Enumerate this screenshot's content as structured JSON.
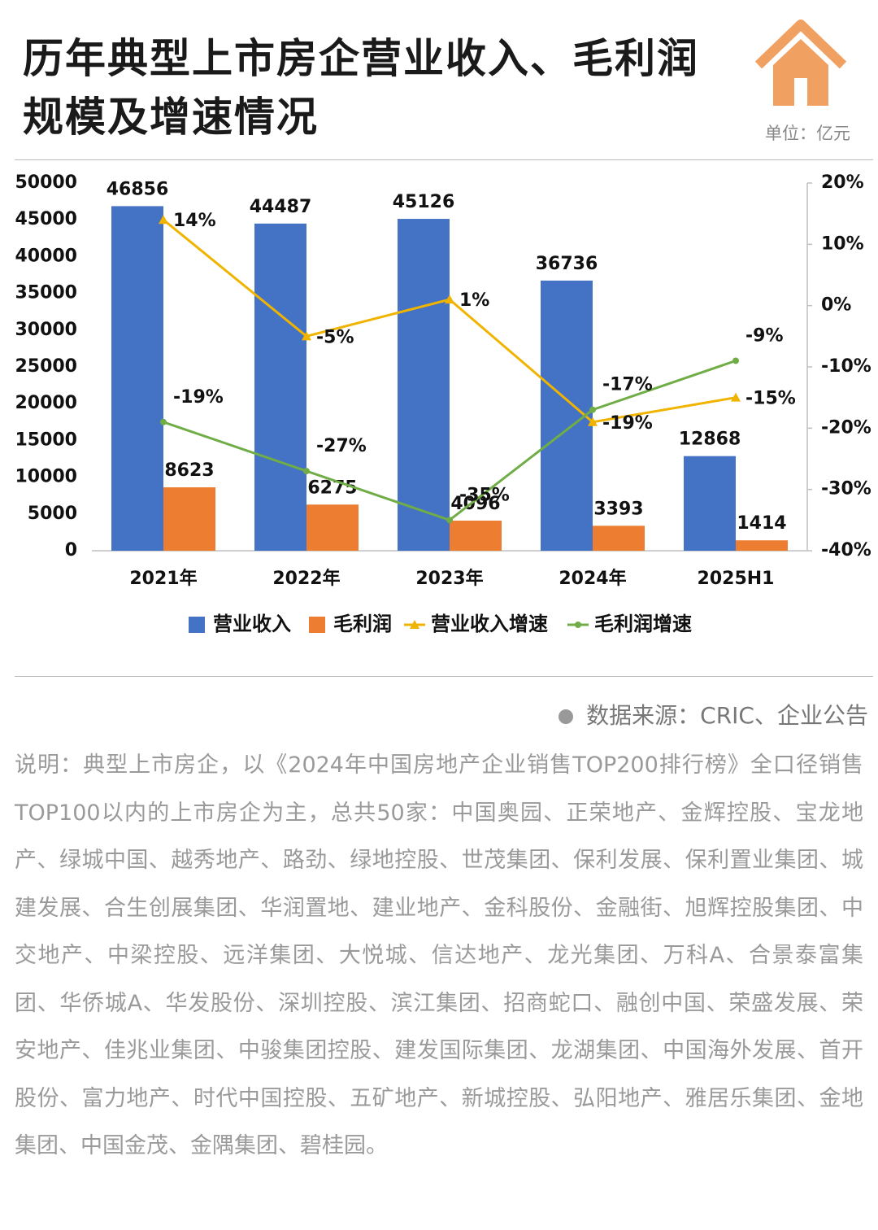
{
  "title": "历年典型上市房企营业收入、毛利润规模及增速情况",
  "unit": "单位：亿元",
  "chart_data": {
    "type": "bar_line",
    "categories": [
      "2021年",
      "2022年",
      "2023年",
      "2024年",
      "2025H1"
    ],
    "series": [
      {
        "name": "营业收入",
        "type": "bar",
        "color": "#4472c4",
        "values": [
          46856,
          44487,
          45126,
          36736,
          12868
        ]
      },
      {
        "name": "毛利润",
        "type": "bar",
        "color": "#ed7d31",
        "values": [
          8623,
          6275,
          4096,
          3393,
          1414
        ]
      },
      {
        "name": "营业收入增速",
        "type": "line",
        "axis": "y2",
        "color": "#f0b400",
        "values": [
          14,
          -5,
          1,
          -19,
          -15
        ],
        "value_labels": [
          "14%",
          "-5%",
          "1%",
          "-19%",
          "-15%"
        ]
      },
      {
        "name": "毛利润增速",
        "type": "line",
        "axis": "y2",
        "color": "#70ad47",
        "values": [
          -19,
          -27,
          -35,
          -17,
          -9
        ],
        "value_labels": [
          "-19%",
          "-27%",
          "-35%",
          "-17%",
          "-9%"
        ]
      }
    ],
    "ylim": [
      0,
      50000
    ],
    "yticks": [
      0,
      5000,
      10000,
      15000,
      20000,
      25000,
      30000,
      35000,
      40000,
      45000,
      50000
    ],
    "y2lim": [
      -40,
      20
    ],
    "y2ticks": [
      {
        "value": -40,
        "label": "-40%"
      },
      {
        "value": -30,
        "label": "-30%"
      },
      {
        "value": -20,
        "label": "-20%"
      },
      {
        "value": -10,
        "label": "-10%"
      },
      {
        "value": 0,
        "label": "0%"
      },
      {
        "value": 10,
        "label": "10%"
      },
      {
        "value": 20,
        "label": "20%"
      }
    ],
    "legend": "bottom"
  },
  "source": "数据来源：CRIC、企业公告",
  "note": "说明：典型上市房企，以《2024年中国房地产企业销售TOP200排行榜》全口径销售TOP100以内的上市房企为主，总共50家：中国奥园、正荣地产、金辉控股、宝龙地产、绿城中国、越秀地产、路劲、绿地控股、世茂集团、保利发展、保利置业集团、城建发展、合生创展集团、华润置地、建业地产、金科股份、金融街、旭辉控股集团、中交地产、中梁控股、远洋集团、大悦城、信达地产、龙光集团、万科A、合景泰富集团、华侨城A、华发股份、深圳控股、滨江集团、招商蛇口、融创中国、荣盛发展、荣安地产、佳兆业集团、中骏集团控股、建发国际集团、龙湖集团、中国海外发展、首开股份、富力地产、时代中国控股、五矿地产、新城控股、弘阳地产、雅居乐集团、金地集团、中国金茂、金隅集团、碧桂园。"
}
